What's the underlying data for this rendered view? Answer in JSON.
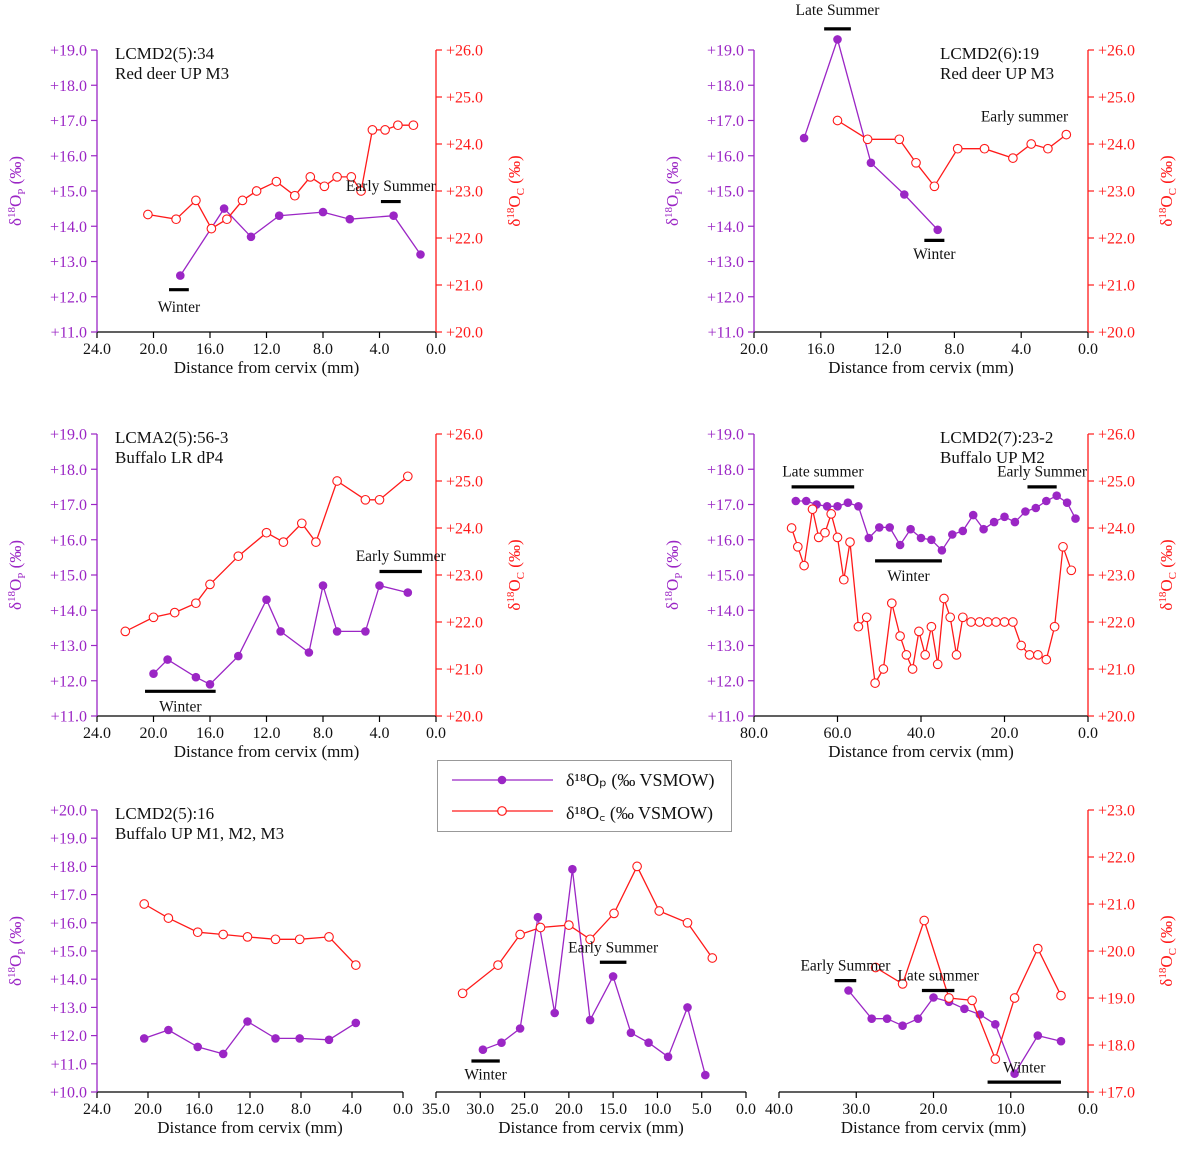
{
  "colors": {
    "phosphate": "#9b26c5",
    "carbonate": "#ff1a1a",
    "axis": "#000000",
    "bar": "#000000"
  },
  "legend": {
    "phosphate": {
      "label": "δ¹⁸Oₚ (‰ VSMOW)"
    },
    "carbonate": {
      "label": "δ¹⁸O꜀ (‰ VSMOW)"
    }
  },
  "chart_data": [
    {
      "type": "line",
      "title": "LCMD2(5):34",
      "subtitle": "Red deer UP M3",
      "xlabel": "Distance from cervix (mm)",
      "ylabel_left": "δ18OP (‰)",
      "ylabel_right": "δ18OC (‰)",
      "x_reversed": true,
      "xlim": [
        0,
        24
      ],
      "x_ticks": [
        "24.0",
        "20.0",
        "16.0",
        "12.0",
        "8.0",
        "4.0",
        "0.0"
      ],
      "x_tick_values": [
        24,
        20,
        16,
        12,
        8,
        4,
        0
      ],
      "ylim_left": [
        11,
        19
      ],
      "y_ticks_left": [
        "+11.0",
        "+12.0",
        "+13.0",
        "+14.0",
        "+15.0",
        "+16.0",
        "+17.0",
        "+18.0",
        "+19.0"
      ],
      "ylim_right": [
        20,
        26
      ],
      "y_ticks_right": [
        "+20.0",
        "+21.0",
        "+22.0",
        "+23.0",
        "+24.0",
        "+25.0",
        "+26.0"
      ],
      "series": [
        {
          "name": "δ18OP (‰ VSMOW)",
          "axis": "left",
          "x": [
            18.1,
            15.0,
            13.1,
            11.1,
            8.0,
            6.1,
            3.0,
            1.1
          ],
          "y": [
            12.6,
            14.5,
            13.7,
            14.3,
            14.4,
            14.2,
            14.3,
            13.2
          ]
        },
        {
          "name": "δ18OC (‰ VSMOW)",
          "axis": "right",
          "x": [
            20.4,
            18.4,
            17.0,
            15.9,
            14.8,
            13.7,
            12.7,
            11.3,
            10.0,
            8.9,
            7.9,
            7.0,
            6.0,
            5.3,
            4.5,
            3.6,
            2.7,
            1.6
          ],
          "y": [
            22.5,
            22.4,
            22.8,
            22.2,
            22.4,
            22.8,
            23.0,
            23.2,
            22.9,
            23.3,
            23.1,
            23.3,
            23.3,
            23.0,
            24.3,
            24.3,
            24.4,
            24.4
          ]
        }
      ],
      "annotations": [
        {
          "text": "Winter",
          "bar": [
            18.9,
            17.5
          ],
          "level": 12.2,
          "label_level": 11.8
        },
        {
          "text": "Early Summer",
          "bar": [
            3.9,
            2.5
          ],
          "level": 14.7,
          "label_level": 15.0
        }
      ]
    },
    {
      "type": "line",
      "title": "LCMD2(6):19",
      "subtitle": "Red deer UP M3",
      "xlabel": "Distance from cervix (mm)",
      "ylabel_left": "δ18OP (‰)",
      "ylabel_right": "δ18OC (‰)",
      "x_reversed": true,
      "xlim": [
        0,
        20
      ],
      "x_ticks": [
        "20.0",
        "16.0",
        "12.0",
        "8.0",
        "4.0",
        "0.0"
      ],
      "x_tick_values": [
        20,
        16,
        12,
        8,
        4,
        0
      ],
      "ylim_left": [
        11,
        19
      ],
      "y_ticks_left": [
        "+11.0",
        "+12.0",
        "+13.0",
        "+14.0",
        "+15.0",
        "+16.0",
        "+17.0",
        "+18.0",
        "+19.0"
      ],
      "ylim_right": [
        20,
        26
      ],
      "y_ticks_right": [
        "+20.0",
        "+21.0",
        "+22.0",
        "+23.0",
        "+24.0",
        "+25.0",
        "+26.0"
      ],
      "series": [
        {
          "name": "δ18OP (‰ VSMOW)",
          "axis": "left",
          "x": [
            17.0,
            15.0,
            13.0,
            11.0,
            9.0
          ],
          "y": [
            16.5,
            19.3,
            15.8,
            14.9,
            13.9
          ]
        },
        {
          "name": "δ18OC (‰ VSMOW)",
          "axis": "right",
          "x": [
            15.0,
            13.2,
            11.3,
            10.3,
            9.2,
            7.8,
            6.2,
            4.5,
            3.4,
            2.4,
            1.3
          ],
          "y": [
            24.5,
            24.1,
            24.1,
            23.6,
            23.1,
            23.9,
            23.9,
            23.7,
            24.0,
            23.9,
            24.2
          ]
        }
      ],
      "annotations": [
        {
          "text": "Late Summer",
          "bar": [
            15.8,
            14.2
          ],
          "level": 19.6,
          "label_level": 20.0
        },
        {
          "text": "Winter",
          "bar": [
            9.8,
            8.6
          ],
          "level": 13.6,
          "label_level": 13.3
        },
        {
          "text": "Early summer",
          "label_x": 3.8,
          "label_level": 17.2
        }
      ]
    },
    {
      "type": "line",
      "title": "LCMA2(5):56-3",
      "subtitle": "Buffalo LR dP4",
      "xlabel": "Distance from cervix (mm)",
      "ylabel_left": "δ18OP (‰)",
      "ylabel_right": "δ18OC (‰)",
      "x_reversed": true,
      "xlim": [
        0,
        24
      ],
      "x_ticks": [
        "24.0",
        "20.0",
        "16.0",
        "12.0",
        "8.0",
        "4.0",
        "0.0"
      ],
      "x_tick_values": [
        24,
        20,
        16,
        12,
        8,
        4,
        0
      ],
      "ylim_left": [
        11,
        19
      ],
      "y_ticks_left": [
        "+11.0",
        "+12.0",
        "+13.0",
        "+14.0",
        "+15.0",
        "+16.0",
        "+17.0",
        "+18.0",
        "+19.0"
      ],
      "ylim_right": [
        20,
        26
      ],
      "y_ticks_right": [
        "+20.0",
        "+21.0",
        "+22.0",
        "+23.0",
        "+24.0",
        "+25.0",
        "+26.0"
      ],
      "series": [
        {
          "name": "δ18OP (‰ VSMOW)",
          "axis": "left",
          "x": [
            20.0,
            19.0,
            17.0,
            16.0,
            14.0,
            12.0,
            11.0,
            9.0,
            8.0,
            7.0,
            5.0,
            4.0,
            2.0
          ],
          "y": [
            12.2,
            12.6,
            12.1,
            11.9,
            12.7,
            14.3,
            13.4,
            12.8,
            14.7,
            13.4,
            13.4,
            14.7,
            14.5
          ]
        },
        {
          "name": "δ18OC (‰ VSMOW)",
          "axis": "right",
          "x": [
            22.0,
            20.0,
            18.5,
            17.0,
            16.0,
            14.0,
            12.0,
            10.8,
            9.5,
            8.5,
            7.0,
            5.0,
            4.0,
            2.0
          ],
          "y": [
            21.8,
            22.1,
            22.2,
            22.4,
            22.8,
            23.4,
            23.9,
            23.7,
            24.1,
            23.7,
            25.0,
            24.6,
            24.6,
            25.1
          ]
        }
      ],
      "annotations": [
        {
          "text": "Winter",
          "bar": [
            20.6,
            15.6
          ],
          "level": 11.7,
          "label_level": 11.35
        },
        {
          "text": "Early Summer",
          "bar": [
            4.0,
            1.0
          ],
          "level": 15.1,
          "label_level": 15.4
        }
      ]
    },
    {
      "type": "line",
      "title": "LCMD2(7):23-2",
      "subtitle": "Buffalo UP M2",
      "xlabel": "Distance from cervix (mm)",
      "ylabel_left": "δ18OP (‰)",
      "ylabel_right": "δ18OC (‰)",
      "x_reversed": true,
      "xlim": [
        0,
        80
      ],
      "x_ticks": [
        "80.0",
        "60.0",
        "40.0",
        "20.0",
        "0.0"
      ],
      "x_tick_values": [
        80,
        60,
        40,
        20,
        0
      ],
      "ylim_left": [
        11,
        19
      ],
      "y_ticks_left": [
        "+11.0",
        "+12.0",
        "+13.0",
        "+14.0",
        "+15.0",
        "+16.0",
        "+17.0",
        "+18.0",
        "+19.0"
      ],
      "ylim_right": [
        20,
        26
      ],
      "y_ticks_right": [
        "+20.0",
        "+21.0",
        "+22.0",
        "+23.0",
        "+24.0",
        "+25.0",
        "+26.0"
      ],
      "series": [
        {
          "name": "δ18OP (‰ VSMOW)",
          "axis": "left",
          "x": [
            70.0,
            67.5,
            65.0,
            62.5,
            60.0,
            57.5,
            55.0,
            52.5,
            50.0,
            47.5,
            45.0,
            42.5,
            40.0,
            37.5,
            35.0,
            32.5,
            30.0,
            27.5,
            25.0,
            22.5,
            20.0,
            17.5,
            15.0,
            12.5,
            10.0,
            7.5,
            5.0,
            3.0
          ],
          "y": [
            17.1,
            17.1,
            17.0,
            16.95,
            16.95,
            17.05,
            16.95,
            16.05,
            16.35,
            16.35,
            15.85,
            16.3,
            16.05,
            16.0,
            15.7,
            16.15,
            16.25,
            16.7,
            16.3,
            16.5,
            16.65,
            16.5,
            16.8,
            16.9,
            17.1,
            17.25,
            17.05,
            16.6
          ]
        },
        {
          "name": "δ18OC (‰ VSMOW)",
          "axis": "right",
          "x": [
            71.0,
            69.5,
            68.0,
            66.0,
            64.5,
            63.0,
            61.5,
            60.0,
            58.5,
            57.0,
            55.0,
            53.0,
            51.0,
            49.0,
            47.0,
            45.0,
            43.5,
            42.0,
            40.5,
            39.0,
            37.5,
            36.0,
            34.5,
            33.0,
            31.5,
            30.0,
            28.0,
            26.0,
            24.0,
            22.0,
            20.0,
            18.0,
            16.0,
            14.0,
            12.0,
            10.0,
            8.0,
            6.0,
            4.0
          ],
          "y": [
            24.0,
            23.6,
            23.2,
            24.4,
            23.8,
            23.9,
            24.3,
            23.8,
            22.9,
            23.7,
            21.9,
            22.1,
            20.7,
            21.0,
            22.4,
            21.7,
            21.3,
            21.0,
            21.8,
            21.3,
            21.9,
            21.1,
            22.5,
            22.1,
            21.3,
            22.1,
            22.0,
            22.0,
            22.0,
            22.0,
            22.0,
            22.0,
            21.5,
            21.3,
            21.3,
            21.2,
            21.9,
            23.6,
            23.1
          ]
        }
      ],
      "annotations": [
        {
          "text": "Late summer",
          "bar": [
            71.0,
            56.0
          ],
          "level": 17.5,
          "label_level": 17.8
        },
        {
          "text": "Winter",
          "bar": [
            51.0,
            35.0
          ],
          "level": 15.4,
          "label_level": 15.05
        },
        {
          "text": "Early Summer",
          "bar": [
            14.5,
            7.5
          ],
          "level": 17.5,
          "label_level": 17.8
        }
      ]
    },
    {
      "type": "line",
      "title": "LCMD2(5):16",
      "subtitle": "Buffalo UP M1, M2, M3",
      "xlabel": "Distance from cervix (mm)",
      "ylabel_left": "δ18OP (‰)",
      "x_reversed": true,
      "xlim": [
        0,
        24
      ],
      "x_ticks": [
        "24.0",
        "20.0",
        "16.0",
        "12.0",
        "8.0",
        "4.0",
        "0.0"
      ],
      "x_tick_values": [
        24,
        20,
        16,
        12,
        8,
        4,
        0
      ],
      "ylim_left": [
        10,
        20
      ],
      "y_ticks_left": [
        "+10.0",
        "+11.0",
        "+12.0",
        "+13.0",
        "+14.0",
        "+15.0",
        "+16.0",
        "+17.0",
        "+18.0",
        "+19.0",
        "+20.0"
      ],
      "ylim_right": [
        17,
        23
      ],
      "series": [
        {
          "name": "δ18OP (‰ VSMOW)",
          "axis": "left",
          "x": [
            20.3,
            18.4,
            16.1,
            14.1,
            12.2,
            10.0,
            8.1,
            5.8,
            3.7
          ],
          "y": [
            11.9,
            12.2,
            11.6,
            11.35,
            12.5,
            11.9,
            11.9,
            11.85,
            12.45
          ]
        },
        {
          "name": "δ18OC (‰ VSMOW)",
          "axis": "right",
          "x": [
            20.3,
            18.4,
            16.1,
            14.1,
            12.2,
            10.0,
            8.1,
            5.8,
            3.7
          ],
          "y": [
            21.0,
            20.7,
            20.4,
            20.35,
            20.3,
            20.25,
            20.25,
            20.3,
            19.7
          ]
        }
      ],
      "annotations": []
    },
    {
      "type": "line",
      "xlabel": "Distance from cervix (mm)",
      "x_reversed": true,
      "xlim": [
        0,
        35
      ],
      "x_ticks": [
        "35.0",
        "30.0",
        "25.0",
        "20.0",
        "15.0",
        "10.0",
        "5.0",
        "0.0"
      ],
      "x_tick_values": [
        35,
        30,
        25,
        20,
        15,
        10,
        5,
        0
      ],
      "ylim_left": [
        10,
        20
      ],
      "ylim_right": [
        17,
        23
      ],
      "series": [
        {
          "name": "δ18OP (‰ VSMOW)",
          "axis": "left",
          "x": [
            29.7,
            27.6,
            25.5,
            23.5,
            21.6,
            19.6,
            17.6,
            15.0,
            13.0,
            11.0,
            8.8,
            6.6,
            4.6
          ],
          "y": [
            11.5,
            11.75,
            12.25,
            16.2,
            12.8,
            17.9,
            12.55,
            14.1,
            12.1,
            11.75,
            11.25,
            13.0,
            10.6
          ]
        },
        {
          "name": "δ18OC (‰ VSMOW)",
          "axis": "right",
          "x": [
            32.0,
            28.0,
            25.5,
            23.2,
            20.0,
            17.6,
            14.9,
            12.3,
            9.8,
            6.6,
            3.8
          ],
          "y": [
            19.1,
            19.7,
            20.35,
            20.5,
            20.55,
            20.25,
            20.8,
            21.8,
            20.85,
            20.6,
            19.85
          ]
        }
      ],
      "annotations": [
        {
          "text": "Winter",
          "bar": [
            31.0,
            27.8
          ],
          "level": 11.1,
          "label_level": 10.72
        },
        {
          "text": "Early Summer",
          "bar": [
            16.5,
            13.5
          ],
          "level": 14.6,
          "label_level": 14.95
        }
      ]
    },
    {
      "type": "line",
      "xlabel": "Distance from cervix (mm)",
      "ylabel_right": "δ18OC (‰)",
      "x_reversed": true,
      "xlim": [
        0,
        40
      ],
      "x_ticks": [
        "40.0",
        "30.0",
        "20.0",
        "10.0",
        "0.0"
      ],
      "x_tick_values": [
        40,
        30,
        20,
        10,
        0
      ],
      "ylim_left": [
        10,
        20
      ],
      "ylim_right": [
        17,
        23
      ],
      "y_ticks_right": [
        "+17.0",
        "+18.0",
        "+19.0",
        "+20.0",
        "+21.0",
        "+22.0",
        "+23.0"
      ],
      "series": [
        {
          "name": "δ18OP (‰ VSMOW)",
          "axis": "left",
          "x": [
            31.0,
            28.0,
            26.0,
            24.0,
            22.0,
            20.0,
            18.0,
            16.0,
            14.0,
            12.0,
            9.5,
            6.5,
            3.5
          ],
          "y": [
            13.6,
            12.6,
            12.6,
            12.35,
            12.6,
            13.35,
            13.2,
            12.95,
            12.75,
            12.4,
            10.65,
            12.0,
            11.8
          ]
        },
        {
          "name": "δ18OC (‰ VSMOW)",
          "axis": "right",
          "x": [
            27.5,
            24.0,
            21.2,
            18.0,
            15.0,
            12.0,
            9.5,
            6.5,
            3.5
          ],
          "y": [
            19.65,
            19.3,
            20.65,
            19.0,
            18.95,
            17.7,
            19.0,
            20.05,
            19.05
          ]
        }
      ],
      "annotations": [
        {
          "text": "Early Summer",
          "bar": [
            32.8,
            30.0
          ],
          "level": 13.95,
          "label_level": 14.3
        },
        {
          "text": "Late summer",
          "bar": [
            21.5,
            17.3
          ],
          "level": 13.6,
          "label_level": 13.95
        },
        {
          "text": "Winter",
          "bar": [
            13.0,
            3.5
          ],
          "level": 10.35,
          "label_level": 10.7
        }
      ]
    }
  ]
}
